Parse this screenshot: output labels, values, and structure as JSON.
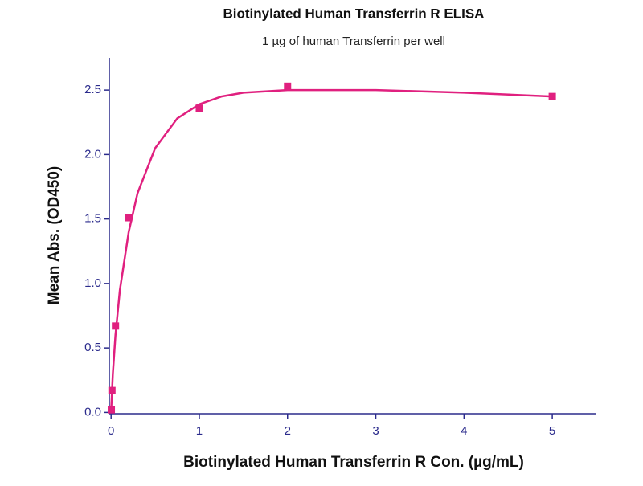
{
  "chart_data": {
    "type": "scatter",
    "title": "Biotinylated Human Transferrin R ELISA",
    "subtitle": "1 µg of human Transferrin per well",
    "x_label": "Biotinylated Human Transferrin R Con. (µg/mL)",
    "y_label": "Mean Abs. (OD450)",
    "xlim": [
      -0.02,
      5.5
    ],
    "ylim": [
      -0.01,
      2.75
    ],
    "xticks": [
      0,
      1,
      2,
      3,
      4,
      5
    ],
    "yticks": [
      {
        "value": 0,
        "label": "0.0"
      },
      0.5,
      {
        "value": 1,
        "label": "1.0"
      },
      1.5,
      {
        "value": 2,
        "label": "2.0"
      },
      2.5
    ],
    "axis_color": "#2b2b8c",
    "series": [
      {
        "mode": "markers",
        "color": "#e0207f",
        "x": [
          0.003,
          0.01,
          0.05,
          0.2,
          1,
          2,
          5
        ],
        "values": [
          0.02,
          0.17,
          0.67,
          1.51,
          2.36,
          2.53,
          2.45
        ]
      },
      {
        "mode": "line",
        "color": "#e0207f",
        "x": [
          0,
          0.02,
          0.05,
          0.1,
          0.2,
          0.3,
          0.5,
          0.75,
          1,
          1.25,
          1.5,
          2,
          2.5,
          3,
          4,
          5
        ],
        "values": [
          0,
          0.3,
          0.6,
          0.95,
          1.4,
          1.7,
          2.05,
          2.28,
          2.39,
          2.45,
          2.48,
          2.5,
          2.5,
          2.5,
          2.48,
          2.45
        ]
      }
    ]
  }
}
